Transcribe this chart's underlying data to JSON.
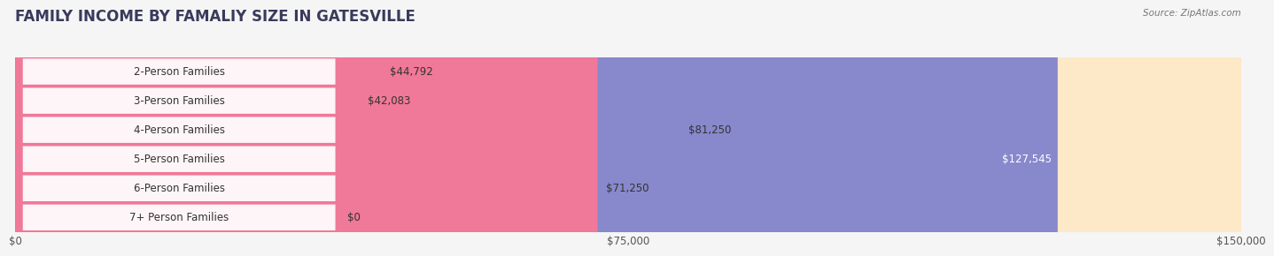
{
  "title": "FAMILY INCOME BY FAMALIY SIZE IN GATESVILLE",
  "source": "Source: ZipAtlas.com",
  "categories": [
    "2-Person Families",
    "3-Person Families",
    "4-Person Families",
    "5-Person Families",
    "6-Person Families",
    "7+ Person Families"
  ],
  "values": [
    44792,
    42083,
    81250,
    127545,
    71250,
    0
  ],
  "bar_colors": [
    "#8ab4d8",
    "#b89fc8",
    "#4dbdbd",
    "#8888cc",
    "#f07898",
    "#f5c890"
  ],
  "bar_bg_colors": [
    "#dce8f5",
    "#e8dff0",
    "#d0efef",
    "#ddddf5",
    "#fde0ea",
    "#fde8c8"
  ],
  "xlim": [
    0,
    150000
  ],
  "xticks": [
    0,
    75000,
    150000
  ],
  "xtick_labels": [
    "$0",
    "$75,000",
    "$150,000"
  ],
  "background_color": "#f5f5f5",
  "title_color": "#3a3a5c",
  "title_fontsize": 12,
  "bar_height": 0.65,
  "value_fontsize": 8.5,
  "category_fontsize": 8.5,
  "label_inside": [
    false,
    false,
    false,
    true,
    false,
    false
  ]
}
